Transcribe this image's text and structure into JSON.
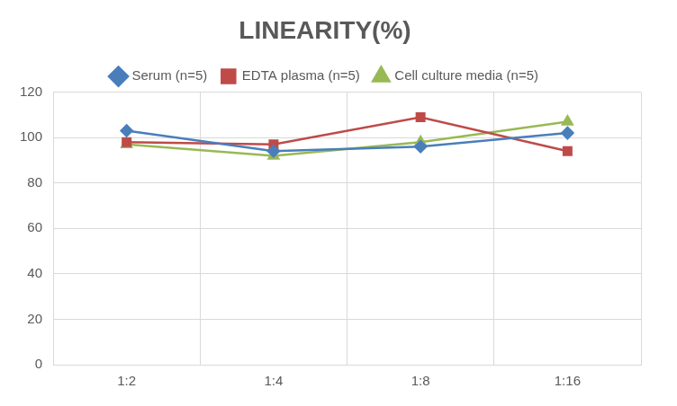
{
  "chart_data": {
    "type": "line",
    "title": "LINEARITY(%)",
    "categories": [
      "1:2",
      "1:4",
      "1:8",
      "1:16"
    ],
    "series": [
      {
        "name": "Serum (n=5)",
        "color": "#4a7ebb",
        "marker": "diamond",
        "values": [
          103,
          94,
          96,
          102
        ]
      },
      {
        "name": "EDTA plasma (n=5)",
        "color": "#be4b48",
        "marker": "square",
        "values": [
          98,
          97,
          109,
          94
        ]
      },
      {
        "name": "Cell culture media (n=5)",
        "color": "#98b954",
        "marker": "triangle",
        "values": [
          97,
          92,
          98,
          107
        ]
      }
    ],
    "ylim": [
      0,
      120
    ],
    "yticks": [
      0,
      20,
      40,
      60,
      80,
      100,
      120
    ],
    "grid": true,
    "legend": "top"
  }
}
